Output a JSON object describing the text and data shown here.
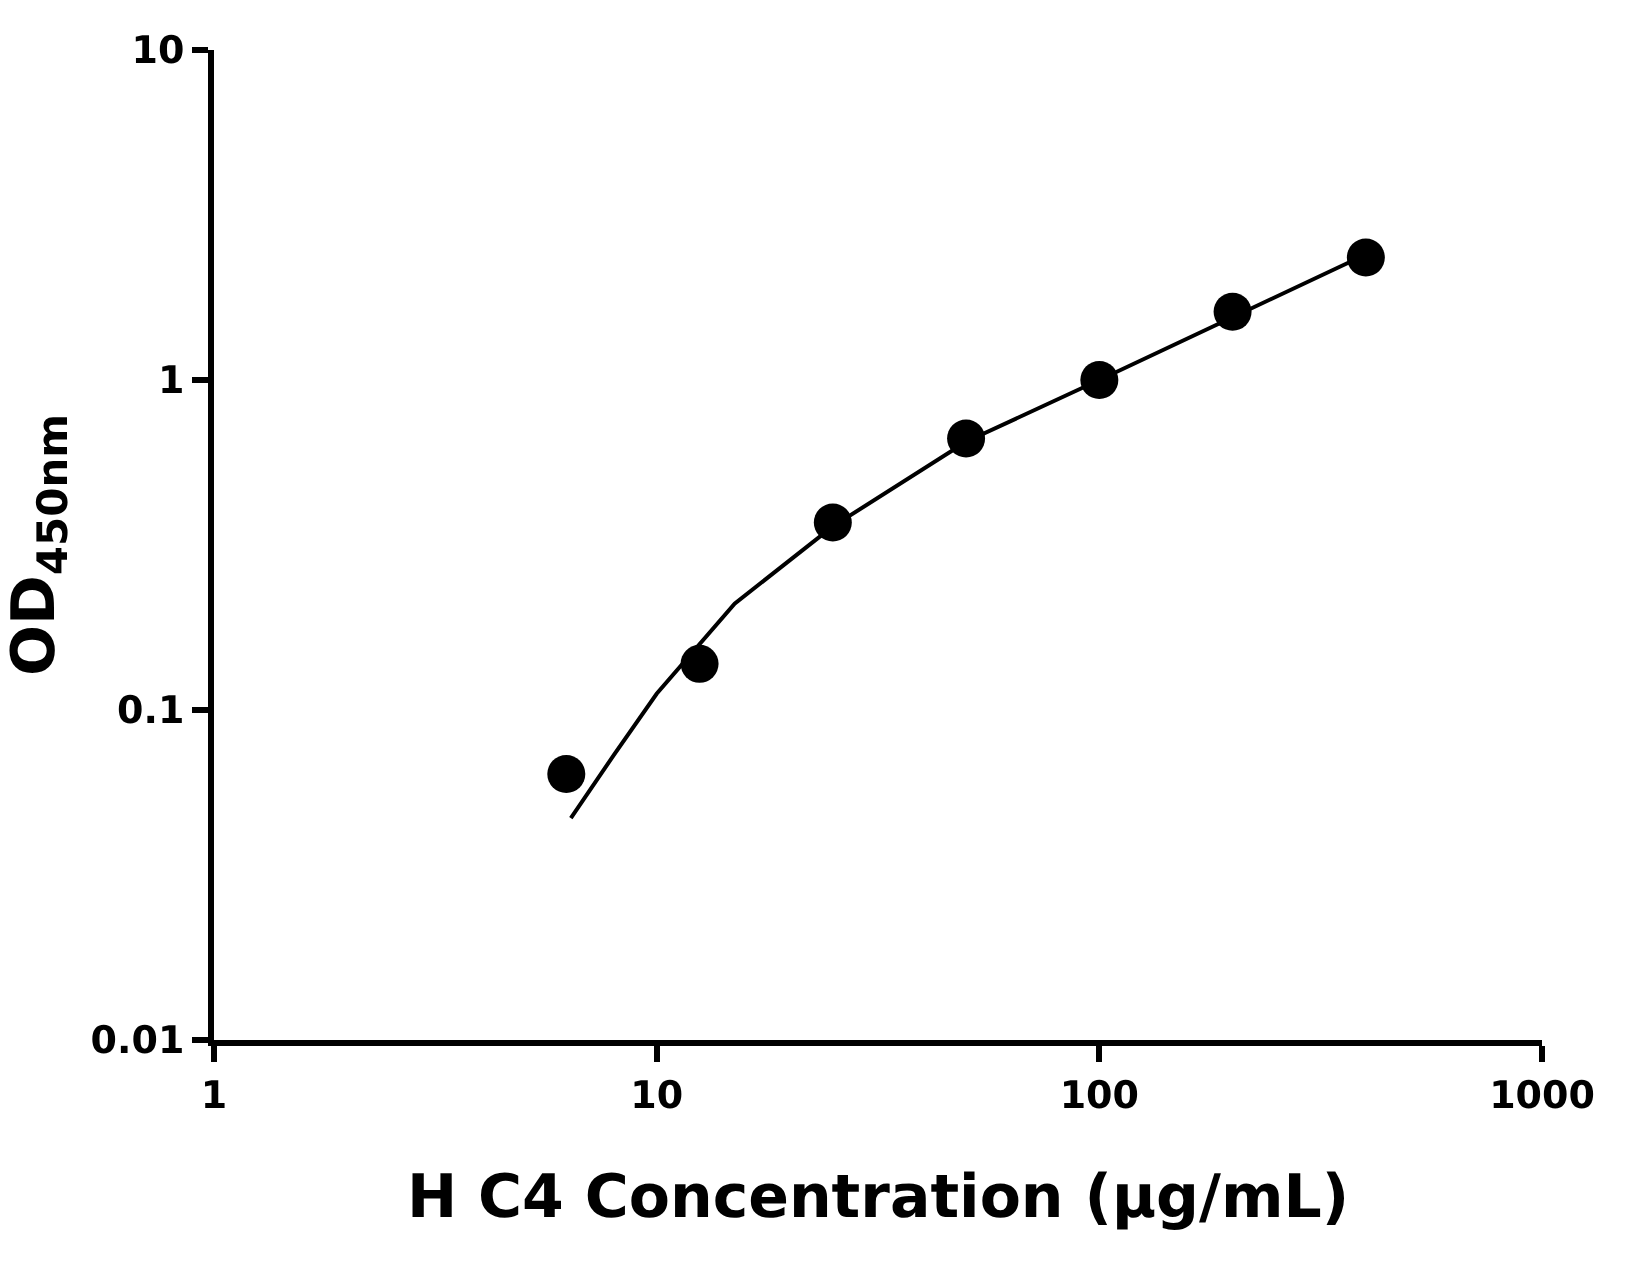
{
  "chart_data": {
    "type": "scatter",
    "xlabel": "H C4 Concentration (µg/mL)",
    "ylabel": "OD$_{450nm}$",
    "log": "xy",
    "marker": "circle",
    "series": [
      {
        "color": "#000000",
        "x": [
          6.25,
          12.5,
          25,
          50,
          100,
          200,
          400
        ],
        "values": [
          0.064,
          0.138,
          0.37,
          0.665,
          1.0,
          1.61,
          2.35
        ]
      },
      {
        "type": "line",
        "color": "#000000",
        "marker": "none",
        "line_style": "solid",
        "x": [
          6.4,
          8,
          10,
          15,
          25,
          50,
          100,
          200,
          400
        ],
        "values": [
          0.047,
          0.073,
          0.112,
          0.21,
          0.36,
          0.65,
          1.0,
          1.55,
          2.4
        ]
      }
    ],
    "xlim": [
      1,
      1000
    ],
    "xticks": [
      1,
      10,
      100,
      1000
    ],
    "ylim": [
      0.01,
      10
    ],
    "yticks": [
      0.01,
      0.1,
      1,
      10
    ]
  }
}
